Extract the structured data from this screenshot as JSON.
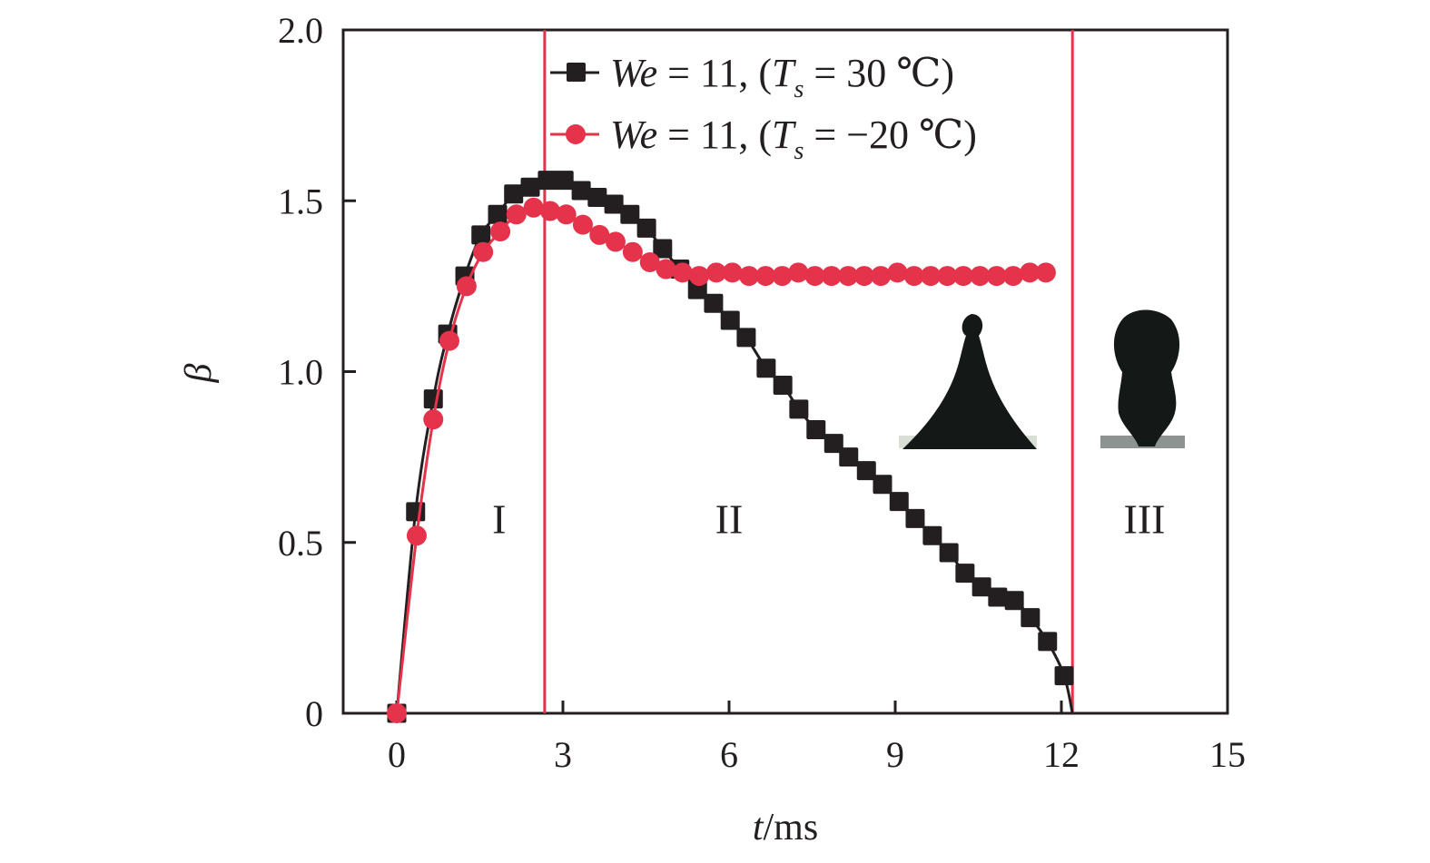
{
  "chart_data": {
    "type": "line",
    "title": "",
    "xlabel": "t/ms",
    "xlabel_parts": {
      "var": "t",
      "unit": "/ms"
    },
    "ylabel": "β",
    "xlim": [
      -0.97,
      15
    ],
    "ylim": [
      0,
      2.0
    ],
    "xticks": [
      0,
      3,
      6,
      9,
      12,
      15
    ],
    "xtick_labels": [
      "0",
      "3",
      "6",
      "9",
      "12",
      "15"
    ],
    "yticks": [
      0,
      0.5,
      1.0,
      1.5,
      2.0
    ],
    "ytick_labels": [
      "0",
      "0.5",
      "1.0",
      "1.5",
      "2.0"
    ],
    "grid": false,
    "legend_position": "top-center",
    "series": [
      {
        "name": "We = 11, (Ts = 30 ℃)",
        "legend": {
          "prefix": "We",
          "mid": " = 11, (",
          "T": "T",
          "sub": "s",
          "suffix": " = 30 ℃)"
        },
        "color": "#231f20",
        "marker": "square",
        "t": [
          0,
          0.34,
          0.66,
          0.92,
          1.23,
          1.52,
          1.82,
          2.11,
          2.41,
          2.72,
          3.02,
          3.33,
          3.62,
          3.92,
          4.21,
          4.51,
          4.8,
          5.11,
          5.43,
          5.72,
          6.02,
          6.31,
          6.67,
          6.97,
          7.26,
          7.57,
          7.89,
          8.16,
          8.48,
          8.77,
          9.07,
          9.36,
          9.67,
          9.97,
          10.26,
          10.56,
          10.85,
          11.15,
          11.44,
          11.75,
          12.05
        ],
        "beta": [
          0,
          0.59,
          0.92,
          1.11,
          1.28,
          1.4,
          1.46,
          1.52,
          1.54,
          1.56,
          1.56,
          1.53,
          1.51,
          1.49,
          1.46,
          1.42,
          1.36,
          1.3,
          1.24,
          1.2,
          1.15,
          1.1,
          1.01,
          0.96,
          0.89,
          0.83,
          0.79,
          0.75,
          0.71,
          0.67,
          0.62,
          0.57,
          0.52,
          0.47,
          0.41,
          0.37,
          0.34,
          0.33,
          0.28,
          0.21,
          0.11
        ],
        "curve_end": {
          "t": 12.2,
          "beta": 0
        }
      },
      {
        "name": "We = 11, (Ts = −20 ℃)",
        "legend": {
          "prefix": "We",
          "mid": " = 11, (",
          "T": "T",
          "sub": "s",
          "suffix": " = −20 ℃)"
        },
        "color": "#e4334a",
        "marker": "circle",
        "t": [
          0,
          0.36,
          0.66,
          0.95,
          1.26,
          1.56,
          1.87,
          2.16,
          2.47,
          2.77,
          3.06,
          3.36,
          3.66,
          3.95,
          4.26,
          4.57,
          4.86,
          5.16,
          5.46,
          5.77,
          6.06,
          6.36,
          6.66,
          6.96,
          7.25,
          7.55,
          7.85,
          8.15,
          8.44,
          8.74,
          9.04,
          9.34,
          9.64,
          9.94,
          10.23,
          10.53,
          10.83,
          11.13,
          11.43,
          11.72
        ],
        "beta": [
          0,
          0.52,
          0.86,
          1.09,
          1.25,
          1.35,
          1.41,
          1.46,
          1.48,
          1.47,
          1.46,
          1.43,
          1.4,
          1.38,
          1.35,
          1.32,
          1.3,
          1.29,
          1.28,
          1.29,
          1.29,
          1.28,
          1.28,
          1.28,
          1.29,
          1.28,
          1.28,
          1.28,
          1.28,
          1.28,
          1.29,
          1.28,
          1.28,
          1.28,
          1.28,
          1.28,
          1.28,
          1.28,
          1.29,
          1.29
        ]
      }
    ],
    "vertical_lines": [
      {
        "t": 2.67,
        "color": "#e4334a"
      },
      {
        "t": 12.2,
        "color": "#e4334a"
      }
    ],
    "annotations": [
      {
        "text": "I",
        "t": 1.85,
        "beta": 0.57
      },
      {
        "text": "II",
        "t": 6.0,
        "beta": 0.57
      },
      {
        "text": "III",
        "t": 13.5,
        "beta": 0.57
      }
    ],
    "inset_images": [
      {
        "name": "droplet-freezing-cone",
        "description": "frozen droplet with conical tip",
        "t_range": [
          9.0,
          11.5
        ],
        "beta_range": [
          0.77,
          1.17
        ]
      },
      {
        "name": "droplet-rebound",
        "description": "droplet lifting off surface",
        "t_range": [
          12.6,
          14.4
        ],
        "beta_range": [
          0.78,
          1.17
        ]
      }
    ]
  }
}
